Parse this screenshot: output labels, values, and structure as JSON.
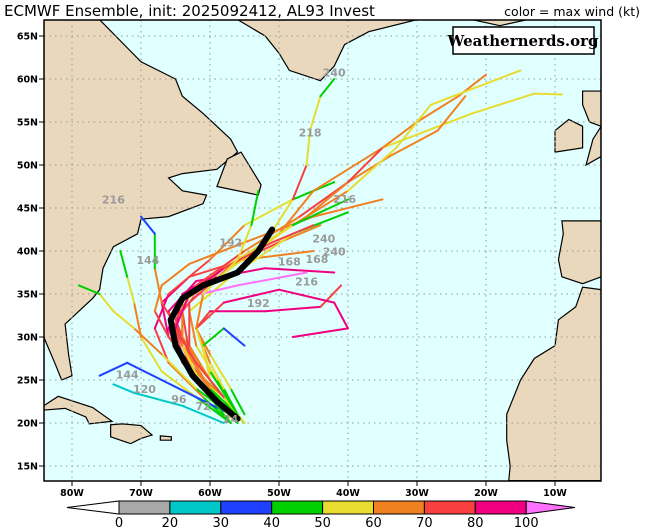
{
  "header": {
    "title": "ECMWF Ensemble, init: 2025092412, AL93 Invest",
    "color_note": "color = max wind (kt)"
  },
  "watermark": "Weathernerds.org",
  "map": {
    "lon_range": [
      -84.1,
      -3.3
    ],
    "lat_range": [
      13.3,
      66.9
    ],
    "grid": true,
    "lat_ticks": [
      {
        "v": 15,
        "label": "15N"
      },
      {
        "v": 20,
        "label": "20N"
      },
      {
        "v": 25,
        "label": "25N"
      },
      {
        "v": 30,
        "label": "30N"
      },
      {
        "v": 35,
        "label": "35N"
      },
      {
        "v": 40,
        "label": "40N"
      },
      {
        "v": 45,
        "label": "45N"
      },
      {
        "v": 50,
        "label": "50N"
      },
      {
        "v": 55,
        "label": "55N"
      },
      {
        "v": 60,
        "label": "60N"
      },
      {
        "v": 65,
        "label": "65N"
      }
    ],
    "lon_ticks": [
      {
        "v": -80,
        "label": "80W"
      },
      {
        "v": -70,
        "label": "70W"
      },
      {
        "v": -60,
        "label": "60W"
      },
      {
        "v": -50,
        "label": "50W"
      },
      {
        "v": -40,
        "label": "40W"
      },
      {
        "v": -30,
        "label": "30W"
      },
      {
        "v": -20,
        "label": "20W"
      },
      {
        "v": -10,
        "label": "10W"
      }
    ],
    "colors": {
      "ocean": "#e0ffff",
      "land": "#ead8bc",
      "coast": "#000000",
      "grid": "#999999",
      "mean_track": "#000000"
    }
  },
  "colorbar": {
    "bins": [
      {
        "min": 0,
        "max": 20,
        "color": "#a8a8a8"
      },
      {
        "min": 20,
        "max": 30,
        "color": "#00c8c8"
      },
      {
        "min": 30,
        "max": 40,
        "color": "#2040ff"
      },
      {
        "min": 40,
        "max": 50,
        "color": "#00d000"
      },
      {
        "min": 50,
        "max": 60,
        "color": "#e8dc30"
      },
      {
        "min": 60,
        "max": 70,
        "color": "#f08020"
      },
      {
        "min": 70,
        "max": 80,
        "color": "#f84040"
      },
      {
        "min": 80,
        "max": 100,
        "color": "#f00080"
      },
      {
        "min": 100,
        "max": null,
        "color": "#ff70ff"
      }
    ],
    "labels": [
      "0",
      "20",
      "30",
      "40",
      "50",
      "60",
      "70",
      "80",
      "100"
    ]
  },
  "tracks": [
    [
      [
        -56,
        20,
        30
      ],
      [
        -59,
        23,
        45
      ],
      [
        -63,
        27,
        60
      ],
      [
        -65,
        31,
        75
      ],
      [
        -64,
        35,
        85
      ],
      [
        -58,
        38,
        80
      ],
      [
        -50,
        41,
        70
      ],
      [
        -44,
        43,
        60
      ]
    ],
    [
      [
        -55,
        20,
        30
      ],
      [
        -58,
        22.5,
        40
      ],
      [
        -62,
        26,
        55
      ],
      [
        -66,
        30,
        70
      ],
      [
        -67,
        34,
        80
      ],
      [
        -63,
        37,
        85
      ],
      [
        -55,
        39,
        75
      ],
      [
        -45,
        40,
        60
      ]
    ],
    [
      [
        -56,
        21,
        25
      ],
      [
        -60,
        24,
        40
      ],
      [
        -64,
        28,
        60
      ],
      [
        -66,
        33,
        70
      ],
      [
        -62,
        36.5,
        80
      ],
      [
        -52,
        38,
        90
      ],
      [
        -42,
        37.5,
        90
      ]
    ],
    [
      [
        -57,
        20,
        30
      ],
      [
        -61,
        23,
        45
      ],
      [
        -66,
        27,
        60
      ],
      [
        -68,
        31,
        70
      ],
      [
        -66,
        35,
        80
      ],
      [
        -60,
        39,
        75
      ],
      [
        -55,
        43,
        60
      ],
      [
        -48,
        46,
        50
      ],
      [
        -42,
        48,
        45
      ]
    ],
    [
      [
        -55,
        21,
        35
      ],
      [
        -57,
        24,
        45
      ],
      [
        -60,
        28,
        55
      ],
      [
        -62,
        31,
        65
      ],
      [
        -60,
        33,
        75
      ],
      [
        -52,
        33,
        85
      ],
      [
        -44,
        33.5,
        80
      ],
      [
        -41,
        36,
        70
      ]
    ],
    [
      [
        -56,
        20,
        30
      ],
      [
        -60,
        24,
        50
      ],
      [
        -64,
        29,
        60
      ],
      [
        -64,
        34,
        70
      ],
      [
        -58,
        38,
        70
      ],
      [
        -50,
        42,
        65
      ],
      [
        -45,
        47,
        60
      ],
      [
        -35,
        52,
        60
      ],
      [
        -22,
        56,
        55
      ],
      [
        -13,
        58.3,
        50
      ],
      [
        -9,
        58.2,
        55
      ]
    ],
    [
      [
        -55,
        20,
        30
      ],
      [
        -59,
        24,
        45
      ],
      [
        -63,
        28,
        60
      ],
      [
        -65,
        32,
        70
      ],
      [
        -62,
        36,
        75
      ],
      [
        -55,
        40,
        70
      ],
      [
        -47,
        44,
        60
      ],
      [
        -40,
        48,
        70
      ],
      [
        -34,
        51,
        65
      ],
      [
        -27,
        54,
        60
      ],
      [
        -23,
        58,
        65
      ]
    ],
    [
      [
        -57,
        20,
        30
      ],
      [
        -62,
        23,
        40
      ],
      [
        -67,
        26,
        50
      ],
      [
        -70,
        30,
        55
      ],
      [
        -71,
        34,
        60
      ],
      [
        -72,
        37,
        55
      ],
      [
        -73,
        40,
        40
      ]
    ],
    [
      [
        -56,
        21,
        30
      ],
      [
        -60,
        25,
        45
      ],
      [
        -64,
        30,
        60
      ],
      [
        -67,
        34,
        70
      ],
      [
        -68,
        38,
        60
      ],
      [
        -68,
        42,
        45
      ],
      [
        -70,
        44,
        35
      ]
    ],
    [
      [
        -56,
        20,
        30
      ],
      [
        -60,
        24,
        45
      ],
      [
        -63,
        28,
        60
      ],
      [
        -64,
        33,
        70
      ],
      [
        -60,
        37,
        70
      ],
      [
        -52,
        41,
        60
      ],
      [
        -48,
        46,
        55
      ],
      [
        -46,
        50,
        70
      ],
      [
        -45.5,
        54,
        55
      ],
      [
        -44,
        58,
        50
      ],
      [
        -42,
        60,
        45
      ]
    ],
    [
      [
        -56,
        21,
        30
      ],
      [
        -59,
        25,
        45
      ],
      [
        -62,
        29,
        55
      ],
      [
        -63,
        33,
        60
      ],
      [
        -57,
        37,
        55
      ],
      [
        -48,
        42,
        50
      ],
      [
        -40,
        44.5,
        45
      ]
    ],
    [
      [
        -57,
        21,
        30
      ],
      [
        -62,
        23,
        35
      ],
      [
        -67,
        25,
        30
      ],
      [
        -72,
        27,
        35
      ],
      [
        -76,
        25.5,
        30
      ]
    ],
    [
      [
        -58,
        20,
        20
      ],
      [
        -64,
        22,
        25
      ],
      [
        -71,
        23.5,
        25
      ],
      [
        -74,
        24.5,
        25
      ]
    ],
    [
      [
        -56,
        21,
        30
      ],
      [
        -58,
        24,
        45
      ],
      [
        -60,
        27,
        55
      ],
      [
        -62,
        31,
        65
      ],
      [
        -58,
        34,
        75
      ],
      [
        -50,
        35.5,
        80
      ],
      [
        -42,
        34,
        80
      ],
      [
        -40,
        31,
        85
      ],
      [
        -48,
        30,
        80
      ]
    ],
    [
      [
        -56,
        21,
        30
      ],
      [
        -60,
        25,
        45
      ],
      [
        -61,
        29,
        50
      ],
      [
        -58,
        31,
        45
      ],
      [
        -55,
        29,
        35
      ]
    ],
    [
      [
        -56,
        20,
        30
      ],
      [
        -60,
        23,
        50
      ],
      [
        -64,
        27,
        70
      ],
      [
        -66,
        31,
        85
      ],
      [
        -64,
        34.5,
        95
      ],
      [
        -56,
        36,
        100
      ],
      [
        -46,
        37.5,
        100
      ]
    ],
    [
      [
        -55,
        20,
        30
      ],
      [
        -58,
        23,
        50
      ],
      [
        -62,
        26,
        65
      ],
      [
        -66,
        30,
        75
      ],
      [
        -68,
        33,
        70
      ],
      [
        -67,
        36,
        65
      ],
      [
        -63,
        38.5,
        60
      ],
      [
        -55,
        41,
        65
      ],
      [
        -45,
        44,
        60
      ],
      [
        -35,
        46,
        60
      ]
    ],
    [
      [
        -56,
        21,
        30
      ],
      [
        -60,
        25,
        45
      ],
      [
        -63,
        29,
        60
      ],
      [
        -63,
        34,
        70
      ],
      [
        -56,
        39,
        70
      ],
      [
        -46,
        44,
        65
      ],
      [
        -40,
        48,
        65
      ],
      [
        -35,
        52,
        70
      ],
      [
        -30,
        55,
        65
      ],
      [
        -24,
        58,
        65
      ],
      [
        -20,
        60.5,
        65
      ]
    ],
    [
      [
        -56,
        20,
        30
      ],
      [
        -60,
        24,
        45
      ],
      [
        -64,
        29,
        60
      ],
      [
        -64,
        34,
        65
      ],
      [
        -58,
        38,
        60
      ],
      [
        -48,
        43,
        55
      ],
      [
        -40,
        47,
        60
      ],
      [
        -33,
        52,
        55
      ],
      [
        -28,
        57,
        55
      ],
      [
        -15,
        61,
        55
      ]
    ],
    [
      [
        -57,
        20,
        30
      ],
      [
        -61,
        24,
        45
      ],
      [
        -64,
        29,
        55
      ],
      [
        -64,
        34,
        60
      ],
      [
        -57,
        38,
        55
      ],
      [
        -48,
        43,
        50
      ],
      [
        -40,
        46,
        45
      ]
    ],
    [
      [
        -57,
        21,
        30
      ],
      [
        -62,
        24,
        45
      ],
      [
        -67,
        28,
        55
      ],
      [
        -71,
        31,
        60
      ],
      [
        -74,
        33,
        55
      ],
      [
        -76,
        35,
        50
      ],
      [
        -79,
        36,
        45
      ]
    ],
    [
      [
        -55,
        20,
        30
      ],
      [
        -58,
        23,
        50
      ],
      [
        -62,
        27,
        70
      ],
      [
        -65,
        31,
        75
      ],
      [
        -63,
        35,
        80
      ],
      [
        -58,
        38,
        80
      ],
      [
        -51,
        41,
        75
      ],
      [
        -45,
        43,
        70
      ]
    ],
    [
      [
        -56,
        21,
        30
      ],
      [
        -60,
        26,
        45
      ],
      [
        -62,
        31,
        55
      ],
      [
        -61,
        35,
        60
      ],
      [
        -56,
        39,
        55
      ],
      [
        -54,
        43,
        50
      ],
      [
        -53,
        47,
        40
      ]
    ]
  ],
  "mean_track": [
    [
      -56,
      20.5
    ],
    [
      -59,
      22.5
    ],
    [
      -62.5,
      25.5
    ],
    [
      -65,
      29
    ],
    [
      -65.7,
      32
    ],
    [
      -64,
      34.5
    ],
    [
      -61,
      36
    ],
    [
      -56,
      37.5
    ],
    [
      -53,
      40
    ],
    [
      -51,
      42.5
    ]
  ],
  "hour_labels": [
    {
      "text": "240",
      "lon": -42,
      "lat": 60.3
    },
    {
      "text": "218",
      "lon": -45.5,
      "lat": 53.3
    },
    {
      "text": "216",
      "lon": -40.5,
      "lat": 45.6
    },
    {
      "text": "240",
      "lon": -43.5,
      "lat": 41
    },
    {
      "text": "240",
      "lon": -42,
      "lat": 39.5
    },
    {
      "text": "168",
      "lon": -48.5,
      "lat": 38.3
    },
    {
      "text": "168",
      "lon": -44.5,
      "lat": 38.6
    },
    {
      "text": "216",
      "lon": -46,
      "lat": 36
    },
    {
      "text": "192",
      "lon": -53,
      "lat": 33.5
    },
    {
      "text": "192",
      "lon": -57,
      "lat": 40.5
    },
    {
      "text": "216",
      "lon": -74,
      "lat": 45.5
    },
    {
      "text": "144",
      "lon": -69,
      "lat": 38.5
    },
    {
      "text": "144",
      "lon": -72,
      "lat": 25.2
    },
    {
      "text": "120",
      "lon": -69.5,
      "lat": 23.5
    },
    {
      "text": "96",
      "lon": -64.5,
      "lat": 22.3
    },
    {
      "text": "72",
      "lon": -61,
      "lat": 21.5
    },
    {
      "text": "24",
      "lon": -57,
      "lat": 20
    }
  ],
  "land": {
    "north_america": [
      [
        -84.1,
        48
      ],
      [
        -84.1,
        66.9
      ],
      [
        -76,
        66.9
      ],
      [
        -70,
        62
      ],
      [
        -65,
        60
      ],
      [
        -64,
        58
      ],
      [
        -61,
        56
      ],
      [
        -57,
        53
      ],
      [
        -56,
        51.5
      ],
      [
        -59,
        49.5
      ],
      [
        -64,
        49
      ],
      [
        -66,
        48.5
      ],
      [
        -64,
        47
      ],
      [
        -60.5,
        46.5
      ],
      [
        -61,
        45.5
      ],
      [
        -66,
        44
      ],
      [
        -70,
        43.7
      ],
      [
        -70.5,
        42
      ],
      [
        -74,
        40.5
      ],
      [
        -75.5,
        38
      ],
      [
        -76,
        35.5
      ],
      [
        -77,
        34.5
      ],
      [
        -79,
        33
      ],
      [
        -81,
        31.5
      ],
      [
        -80.5,
        28
      ],
      [
        -80,
        25.5
      ],
      [
        -81.5,
        25
      ],
      [
        -82.5,
        27
      ],
      [
        -84.1,
        30
      ]
    ],
    "newfoundland": [
      [
        -59,
        47.5
      ],
      [
        -53,
        46.5
      ],
      [
        -52.6,
        47.7
      ],
      [
        -55.5,
        51.5
      ],
      [
        -57.5,
        50.7
      ]
    ],
    "greenland": [
      [
        -56,
        66.9
      ],
      [
        -52,
        65
      ],
      [
        -50,
        63
      ],
      [
        -48.5,
        61
      ],
      [
        -44,
        59.8
      ],
      [
        -42,
        61.5
      ],
      [
        -40.5,
        64
      ],
      [
        -37,
        65.5
      ],
      [
        -30,
        66.9
      ]
    ],
    "iceland": [
      [
        -22,
        66.9
      ],
      [
        -18,
        66.2
      ],
      [
        -14,
        66.9
      ]
    ],
    "ireland": [
      [
        -10,
        51.5
      ],
      [
        -6,
        52
      ],
      [
        -6,
        54.5
      ],
      [
        -8,
        55.3
      ],
      [
        -10,
        54
      ]
    ],
    "great_britain": [
      [
        -6,
        58.6
      ],
      [
        -3.3,
        58.6
      ],
      [
        -3.3,
        51
      ],
      [
        -5.5,
        50
      ],
      [
        -4.5,
        53
      ],
      [
        -3.3,
        54.5
      ],
      [
        -5,
        55
      ],
      [
        -6,
        57
      ]
    ],
    "iberia": [
      [
        -9,
        43.5
      ],
      [
        -3.3,
        43.5
      ],
      [
        -3.3,
        37
      ],
      [
        -6,
        36.2
      ],
      [
        -9,
        37
      ],
      [
        -9.5,
        39
      ],
      [
        -8.8,
        42
      ]
    ],
    "africa": [
      [
        -3.3,
        35.5
      ],
      [
        -6,
        35.8
      ],
      [
        -7,
        33.5
      ],
      [
        -9.5,
        32
      ],
      [
        -10,
        29
      ],
      [
        -13,
        27.5
      ],
      [
        -15,
        25
      ],
      [
        -16.5,
        22
      ],
      [
        -17,
        21
      ],
      [
        -17,
        18
      ],
      [
        -16.5,
        15
      ],
      [
        -16.7,
        13.3
      ],
      [
        -3.3,
        13.3
      ]
    ],
    "cuba": [
      [
        -84.1,
        22
      ],
      [
        -82,
        23.1
      ],
      [
        -77,
        21.8
      ],
      [
        -74.2,
        20.2
      ],
      [
        -77.5,
        19.9
      ],
      [
        -78,
        20.7
      ],
      [
        -81,
        21.7
      ],
      [
        -84.1,
        21.5
      ]
    ],
    "hispaniola": [
      [
        -74.4,
        19.8
      ],
      [
        -72.7,
        19.9
      ],
      [
        -70,
        19.7
      ],
      [
        -68.4,
        18.6
      ],
      [
        -70,
        18.2
      ],
      [
        -71.5,
        17.6
      ],
      [
        -74.4,
        18.4
      ]
    ],
    "puerto_rico": [
      [
        -67.2,
        18.5
      ],
      [
        -65.6,
        18.4
      ],
      [
        -65.6,
        18
      ],
      [
        -67.2,
        18
      ]
    ]
  }
}
